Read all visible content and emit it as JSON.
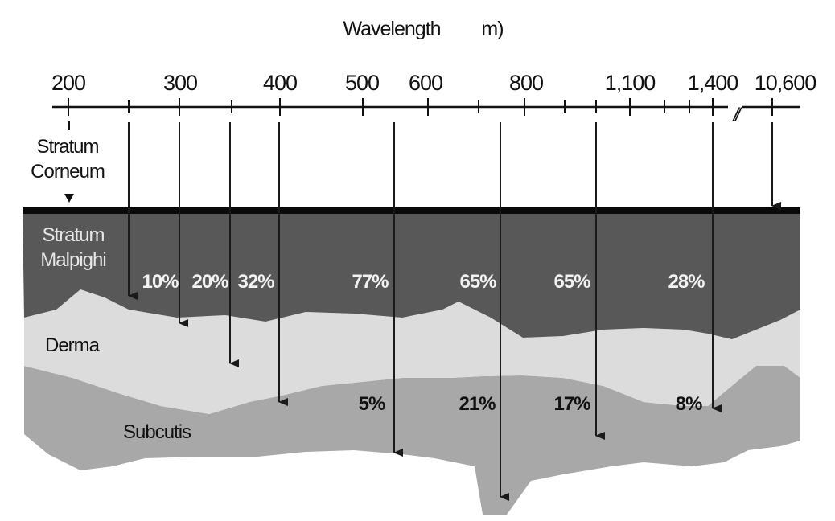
{
  "axis": {
    "title": "Wavelength",
    "unit_fragment": "m)",
    "break_symbol": "//",
    "tick_labels": [
      "200",
      "300",
      "400",
      "500",
      "600",
      "800",
      "1,100",
      "1,400",
      "10,600"
    ]
  },
  "layers": {
    "stratum_corneum": [
      "Stratum",
      "Corneum"
    ],
    "stratum_malpighi": [
      "Stratum",
      "Malpighi"
    ],
    "derma": "Derma",
    "subcutis": "Subcutis"
  },
  "colors": {
    "corneum_line": "#0a0a0a",
    "malpighi": "#585858",
    "derma": "#dcdcdc",
    "subcutis": "#a8a8a8",
    "arrow": "#1a1a1a"
  },
  "penetration": {
    "upper_percentages": [
      "10%",
      "20%",
      "32%",
      "77%",
      "65%",
      "65%",
      "28%"
    ],
    "lower_percentages": [
      "5%",
      "21%",
      "17%",
      "8%"
    ]
  }
}
